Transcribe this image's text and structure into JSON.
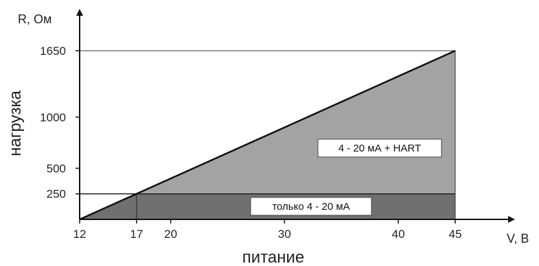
{
  "chart_data": {
    "type": "area",
    "xlabel": "питание",
    "ylabel": "нагрузка",
    "x_unit": "V, В",
    "y_unit": "R, Ом",
    "x_ticks": [
      12,
      17,
      20,
      30,
      40,
      45
    ],
    "x_tick_labels": [
      "12",
      "17",
      "20",
      "30",
      "40",
      "45"
    ],
    "y_ticks": [
      250,
      500,
      1000,
      1650
    ],
    "y_tick_labels": [
      "250",
      "500",
      "1000",
      "1650"
    ],
    "xlim": [
      12,
      45
    ],
    "ylim": [
      0,
      1650
    ],
    "grid": false,
    "line": {
      "x": [
        12,
        45
      ],
      "y": [
        0,
        1650
      ]
    },
    "regions": [
      {
        "label": "4 - 20 мА + HART",
        "polygon_x": [
          17,
          45,
          45
        ],
        "polygon_y": [
          250,
          1650,
          250
        ],
        "color": "#a3a3a3"
      },
      {
        "label": "только 4 - 20 мА",
        "polygon_x": [
          12,
          17,
          45,
          45
        ],
        "polygon_y": [
          0,
          250,
          250,
          0
        ],
        "color": "#707070"
      }
    ]
  }
}
